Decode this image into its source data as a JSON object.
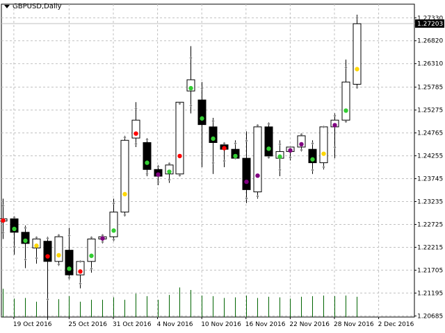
{
  "header": {
    "symbol_label": "GBPUSD,Daily",
    "menu_icon": "caret-down-icon"
  },
  "colors": {
    "bull_body": "#ffffff",
    "bear_body": "#000000",
    "outline": "#000000",
    "grid": "#c0c0c0",
    "volume": "#006400",
    "marker_green": "#32cd32",
    "marker_red": "#ff0000",
    "marker_yellow": "#ffd700",
    "marker_purple": "#800080",
    "marker_gray": "#808080",
    "bid_line": "#c0c0c0",
    "price_tag_bg": "#000000",
    "price_tag_text": "#ffffff"
  },
  "chart_data": {
    "type": "candlestick",
    "symbol": "GBPUSD",
    "timeframe": "Daily",
    "ylim": [
      1.2066,
      1.2745
    ],
    "y_ticks": [
      "1.27330",
      "1.26820",
      "1.26310",
      "1.25785",
      "1.25275",
      "1.24765",
      "1.24255",
      "1.23745",
      "1.23235",
      "1.22725",
      "1.22215",
      "1.21705",
      "1.21195",
      "1.20685"
    ],
    "x_ticks": [
      {
        "label": "19 Oct 2016",
        "index": 1
      },
      {
        "label": "25 Oct 2016",
        "index": 6
      },
      {
        "label": "31 Oct 2016",
        "index": 10
      },
      {
        "label": "4 Nov 2016",
        "index": 14
      },
      {
        "label": "10 Nov 2016",
        "index": 18
      },
      {
        "label": "16 Nov 2016",
        "index": 22
      },
      {
        "label": "22 Nov 2016",
        "index": 26
      },
      {
        "label": "28 Nov 2016",
        "index": 30
      },
      {
        "label": "2 Dec 2016",
        "index": 34
      }
    ],
    "current_price": "1.27203",
    "candles": [
      {
        "o": 1.228,
        "h": 1.233,
        "l": 1.224,
        "c": 1.2285,
        "dot": "red"
      },
      {
        "o": 1.2285,
        "h": 1.229,
        "l": 1.2205,
        "c": 1.2255,
        "dot": "green"
      },
      {
        "o": 1.2255,
        "h": 1.227,
        "l": 1.2175,
        "c": 1.223,
        "dot": "green"
      },
      {
        "o": 1.222,
        "h": 1.2245,
        "l": 1.2185,
        "c": 1.224,
        "dot": "yellow"
      },
      {
        "o": 1.2235,
        "h": 1.2245,
        "l": 1.206,
        "c": 1.219,
        "dot": "red"
      },
      {
        "o": 1.219,
        "h": 1.225,
        "l": 1.218,
        "c": 1.2245,
        "dot": "yellow"
      },
      {
        "o": 1.2215,
        "h": 1.2265,
        "l": 1.215,
        "c": 1.216,
        "dot": "green"
      },
      {
        "o": 1.216,
        "h": 1.219,
        "l": 1.213,
        "c": 1.219,
        "dot": "red"
      },
      {
        "o": 1.219,
        "h": 1.2245,
        "l": 1.2165,
        "c": 1.224,
        "dot": "green"
      },
      {
        "o": 1.224,
        "h": 1.225,
        "l": 1.223,
        "c": 1.2245,
        "dot": "purple"
      },
      {
        "o": 1.2245,
        "h": 1.233,
        "l": 1.2235,
        "c": 1.23,
        "dot": "green"
      },
      {
        "o": 1.23,
        "h": 1.247,
        "l": 1.229,
        "c": 1.246,
        "dot": "yellow"
      },
      {
        "o": 1.2465,
        "h": 1.2545,
        "l": 1.2445,
        "c": 1.2505,
        "dot": "red"
      },
      {
        "o": 1.2455,
        "h": 1.2465,
        "l": 1.238,
        "c": 1.2395,
        "dot": "green"
      },
      {
        "o": 1.2395,
        "h": 1.2405,
        "l": 1.236,
        "c": 1.238,
        "dot": "purple"
      },
      {
        "o": 1.2385,
        "h": 1.241,
        "l": 1.2365,
        "c": 1.2405,
        "dot": "green"
      },
      {
        "o": 1.2385,
        "h": 1.254,
        "l": 1.238,
        "c": 1.2545,
        "dot": "red"
      },
      {
        "o": 1.257,
        "h": 1.267,
        "l": 1.252,
        "c": 1.2595,
        "dot": "green"
      },
      {
        "o": 1.255,
        "h": 1.259,
        "l": 1.24,
        "c": 1.2495,
        "dot": "green"
      },
      {
        "o": 1.249,
        "h": 1.251,
        "l": 1.2385,
        "c": 1.2455,
        "dot": "green"
      },
      {
        "o": 1.245,
        "h": 1.2455,
        "l": 1.24,
        "c": 1.244,
        "dot": "red"
      },
      {
        "o": 1.244,
        "h": 1.246,
        "l": 1.242,
        "c": 1.242,
        "dot": "green"
      },
      {
        "o": 1.242,
        "h": 1.248,
        "l": 1.232,
        "c": 1.235,
        "dot": "purple"
      },
      {
        "o": 1.2345,
        "h": 1.2495,
        "l": 1.233,
        "c": 1.249,
        "dot": "purple"
      },
      {
        "o": 1.249,
        "h": 1.25,
        "l": 1.242,
        "c": 1.2425,
        "dot": "green"
      },
      {
        "o": 1.242,
        "h": 1.246,
        "l": 1.238,
        "c": 1.2435,
        "dot": "green"
      },
      {
        "o": 1.2435,
        "h": 1.2445,
        "l": 1.2415,
        "c": 1.2445,
        "dot": "purple"
      },
      {
        "o": 1.2445,
        "h": 1.2475,
        "l": 1.2435,
        "c": 1.247,
        "dot": "purple"
      },
      {
        "o": 1.244,
        "h": 1.246,
        "l": 1.2385,
        "c": 1.241,
        "dot": "green"
      },
      {
        "o": 1.241,
        "h": 1.249,
        "l": 1.2395,
        "c": 1.249,
        "dot": "yellow"
      },
      {
        "o": 1.249,
        "h": 1.252,
        "l": 1.242,
        "c": 1.2505,
        "dot": "purple"
      },
      {
        "o": 1.2505,
        "h": 1.264,
        "l": 1.25,
        "c": 1.259,
        "dot": "green"
      },
      {
        "o": 1.2585,
        "h": 1.274,
        "l": 1.2575,
        "c": 1.272,
        "dot": "yellow"
      }
    ],
    "volume": [
      46,
      30,
      31,
      25,
      62,
      29,
      34,
      25,
      28,
      28,
      32,
      28,
      38,
      34,
      28,
      36,
      48,
      44,
      35,
      34,
      31,
      32,
      35,
      31,
      33,
      32,
      30,
      33,
      34,
      35,
      34,
      35,
      33
    ]
  }
}
